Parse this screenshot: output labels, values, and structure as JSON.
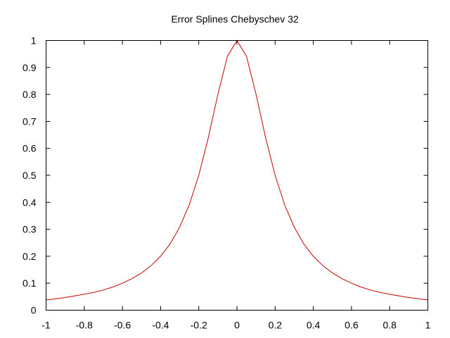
{
  "chart_data": {
    "type": "line",
    "title": "Error Splines Chebyschev 32",
    "xlabel": "",
    "ylabel": "",
    "xlim": [
      -1,
      1
    ],
    "ylim": [
      0,
      1
    ],
    "x_ticks": [
      "-1",
      "-0.8",
      "-0.6",
      "-0.4",
      "-0.2",
      "0",
      "0.2",
      "0.4",
      "0.6",
      "0.8",
      "1"
    ],
    "y_ticks": [
      "0",
      "0.1",
      "0.2",
      "0.3",
      "0.4",
      "0.5",
      "0.6",
      "0.7",
      "0.8",
      "0.9",
      "1"
    ],
    "grid": false,
    "legend": "none",
    "series": [
      {
        "color": "#cc0000",
        "x": [
          -1,
          -0.95,
          -0.9,
          -0.85,
          -0.8,
          -0.75,
          -0.7,
          -0.65,
          -0.6,
          -0.55,
          -0.5,
          -0.45,
          -0.4,
          -0.35,
          -0.3,
          -0.25,
          -0.2,
          -0.15,
          -0.1,
          -0.05,
          0,
          0.05,
          0.1,
          0.15,
          0.2,
          0.25,
          0.3,
          0.35,
          0.4,
          0.45,
          0.5,
          0.55,
          0.6,
          0.65,
          0.7,
          0.75,
          0.8,
          0.85,
          0.9,
          0.95,
          1
        ],
        "y": [
          0.038,
          0.042,
          0.047,
          0.053,
          0.059,
          0.066,
          0.075,
          0.086,
          0.1,
          0.117,
          0.138,
          0.165,
          0.2,
          0.246,
          0.308,
          0.39,
          0.5,
          0.64,
          0.8,
          0.941,
          1,
          0.941,
          0.8,
          0.64,
          0.5,
          0.39,
          0.308,
          0.246,
          0.2,
          0.165,
          0.138,
          0.117,
          0.1,
          0.086,
          0.075,
          0.066,
          0.059,
          0.053,
          0.047,
          0.042,
          0.038
        ]
      }
    ]
  }
}
